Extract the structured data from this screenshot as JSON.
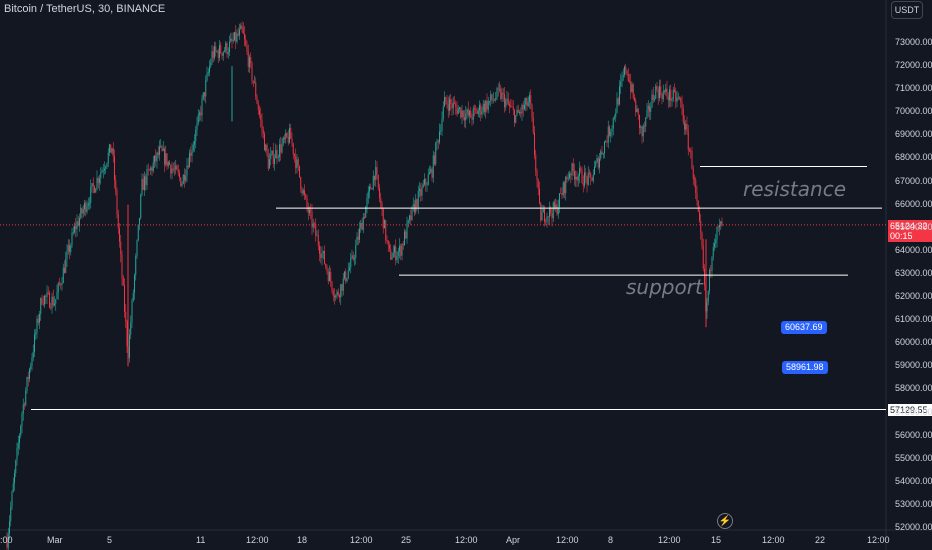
{
  "header": {
    "title": "Bitcoin / TetherUS, 30, BINANCE",
    "currency_button": "USDT"
  },
  "price_axis": {
    "ticks": [
      "73000.00",
      "72000.00",
      "71000.00",
      "70000.00",
      "69000.00",
      "68000.00",
      "67000.00",
      "66000.00",
      "65000.00",
      "64000.00",
      "63000.00",
      "62000.00",
      "61000.00",
      "60000.00",
      "59000.00",
      "58000.00",
      "57000.00",
      "56000.00",
      "55000.00",
      "54000.00",
      "53000.00",
      "52000.00"
    ],
    "current_price": "65124.32",
    "countdown": "00:15",
    "level_label": "57129.55"
  },
  "time_axis": {
    "ticks": [
      ":00",
      "Mar",
      "5",
      "11",
      "12:00",
      "18",
      "12:00",
      "25",
      "12:00",
      "Apr",
      "12:00",
      "8",
      "12:00",
      "15",
      "12:00",
      "22",
      "12:00"
    ]
  },
  "annotations": {
    "resistance": "resistance",
    "support": "support",
    "price_label_1": "60637.69",
    "price_label_2": "58961.98"
  },
  "colors": {
    "up": "#26a69a",
    "down": "#f23645",
    "background": "#131722",
    "grid": "#1e222d",
    "level_line": "#ffffff",
    "blue_label": "#2962ff"
  },
  "icons": {
    "flash": "lightning-icon"
  },
  "chart_data": {
    "type": "candlestick",
    "symbol": "BTCUSDT",
    "interval": "30",
    "ylim": [
      52000,
      74000
    ],
    "path_points": [
      [
        "start",
        51500
      ],
      [
        "late Feb",
        57000
      ],
      [
        "Mar 1",
        62000
      ],
      [
        "Mar 3",
        61800
      ],
      [
        "Mar 4",
        65000
      ],
      [
        "Mar 5",
        68500
      ],
      [
        "Mar 5 dip",
        59500
      ],
      [
        "Mar 6",
        66800
      ],
      [
        "Mar 8",
        68300
      ],
      [
        "Mar 9",
        67000
      ],
      [
        "Mar 11",
        69300
      ],
      [
        "Mar 12",
        72500
      ],
      [
        "Mar 13",
        72800
      ],
      [
        "Mar 14",
        73500
      ],
      [
        "Mar 15",
        71000
      ],
      [
        "Mar 16",
        67800
      ],
      [
        "Mar 17",
        69000
      ],
      [
        "Mar 18",
        66000
      ],
      [
        "Mar 19",
        62000
      ],
      [
        "Mar 20",
        63500
      ],
      [
        "Mar 21",
        67500
      ],
      [
        "Mar 22",
        63800
      ],
      [
        "Mar 23",
        64000
      ],
      [
        "Mar 24",
        66000
      ],
      [
        "Mar 25",
        67500
      ],
      [
        "Mar 26",
        70500
      ],
      [
        "Mar 27",
        69800
      ],
      [
        "Mar 28",
        70800
      ],
      [
        "Mar 30",
        69800
      ],
      [
        "Apr 1",
        70500
      ],
      [
        "Apr 1 12:00",
        65500
      ],
      [
        "Apr 3",
        65800
      ],
      [
        "Apr 4",
        67500
      ],
      [
        "Apr 5",
        67000
      ],
      [
        "Apr 7",
        69500
      ],
      [
        "Apr 8",
        72000
      ],
      [
        "Apr 9",
        69000
      ],
      [
        "Apr 10",
        71000
      ],
      [
        "Apr 11",
        70500
      ],
      [
        "Apr 12",
        67800
      ],
      [
        "Apr 13",
        64000
      ],
      [
        "Apr 13 low",
        61200
      ],
      [
        "Apr 14",
        64500
      ],
      [
        "Apr 15",
        65124
      ]
    ],
    "horizontal_levels": [
      {
        "name": "resistance",
        "value": 65850
      },
      {
        "name": "support",
        "value": 62950
      },
      {
        "name": "upper",
        "value": 67650
      },
      {
        "name": "level",
        "value": 57129.55
      }
    ]
  }
}
